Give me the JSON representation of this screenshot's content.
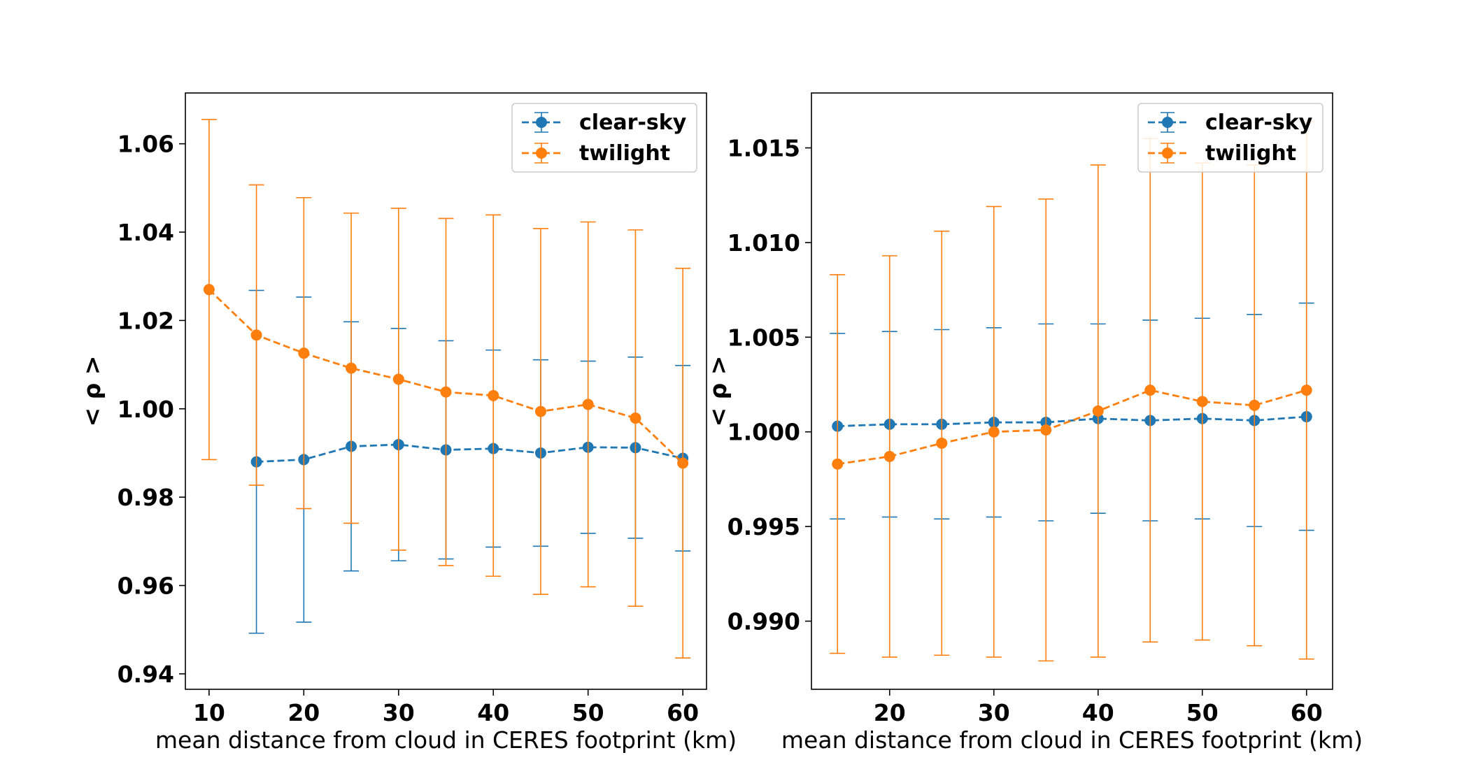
{
  "colors": {
    "clear_sky": "#1f77b4",
    "twilight": "#ff7f0e"
  },
  "chart_data": [
    {
      "type": "line",
      "title": "",
      "xlabel": "mean distance from cloud in CERES footprint (km)",
      "ylabel": "< ρ >",
      "xlim": [
        7.5,
        62.5
      ],
      "ylim": [
        0.9365,
        1.0715
      ],
      "xticks": [
        10,
        20,
        30,
        40,
        50,
        60
      ],
      "yticks": [
        0.94,
        0.96,
        0.98,
        1.0,
        1.02,
        1.04,
        1.06
      ],
      "ytick_labels": [
        "0.94",
        "0.96",
        "0.98",
        "1.00",
        "1.02",
        "1.04",
        "1.06"
      ],
      "legend": "top-right",
      "grid": false,
      "series": [
        {
          "name": "clear-sky",
          "color_key": "clear_sky",
          "x": [
            15,
            20,
            25,
            30,
            35,
            40,
            45,
            50,
            55,
            60
          ],
          "y": [
            0.988,
            0.9885,
            0.9915,
            0.9919,
            0.9907,
            0.991,
            0.99,
            0.9913,
            0.9912,
            0.9888
          ],
          "yerr": [
            0.0388,
            0.0368,
            0.0282,
            0.0263,
            0.0247,
            0.0223,
            0.0211,
            0.0195,
            0.0205,
            0.021
          ]
        },
        {
          "name": "twilight",
          "color_key": "twilight",
          "x": [
            10,
            15,
            20,
            25,
            30,
            35,
            40,
            45,
            50,
            55,
            60
          ],
          "y": [
            1.027,
            1.0167,
            1.0126,
            1.0092,
            1.0067,
            1.0038,
            1.003,
            0.9994,
            1.001,
            0.9979,
            0.9877
          ],
          "yerr": [
            0.0385,
            0.034,
            0.0352,
            0.0351,
            0.0387,
            0.0393,
            0.0409,
            0.0414,
            0.0413,
            0.0426,
            0.0441
          ]
        }
      ]
    },
    {
      "type": "line",
      "title": "",
      "xlabel": "mean distance from cloud in CERES footprint (km)",
      "ylabel": "< ρ >",
      "xlim": [
        12.5,
        62.5
      ],
      "ylim": [
        0.9864,
        1.0179
      ],
      "xticks": [
        20,
        30,
        40,
        50,
        60
      ],
      "yticks": [
        0.99,
        0.995,
        1.0,
        1.005,
        1.01,
        1.015
      ],
      "ytick_labels": [
        "0.990",
        "0.995",
        "1.000",
        "1.005",
        "1.010",
        "1.015"
      ],
      "legend": "top-right",
      "grid": false,
      "series": [
        {
          "name": "clear-sky",
          "color_key": "clear_sky",
          "x": [
            15,
            20,
            25,
            30,
            35,
            40,
            45,
            50,
            55,
            60
          ],
          "y": [
            1.0003,
            1.0004,
            1.0004,
            1.0005,
            1.0005,
            1.0007,
            1.0006,
            1.0007,
            1.0006,
            1.0008
          ],
          "yerr": [
            0.0049,
            0.0049,
            0.005,
            0.005,
            0.0052,
            0.005,
            0.0053,
            0.0053,
            0.0056,
            0.006
          ]
        },
        {
          "name": "twilight",
          "color_key": "twilight",
          "x": [
            15,
            20,
            25,
            30,
            35,
            40,
            45,
            50,
            55,
            60
          ],
          "y": [
            0.9983,
            0.9987,
            0.9994,
            1.0,
            1.0001,
            1.0011,
            1.0022,
            1.0016,
            1.0014,
            1.0022
          ],
          "yerr": [
            0.01,
            0.0106,
            0.0112,
            0.0119,
            0.0122,
            0.013,
            0.0133,
            0.0126,
            0.0127,
            0.0142
          ]
        }
      ]
    }
  ]
}
